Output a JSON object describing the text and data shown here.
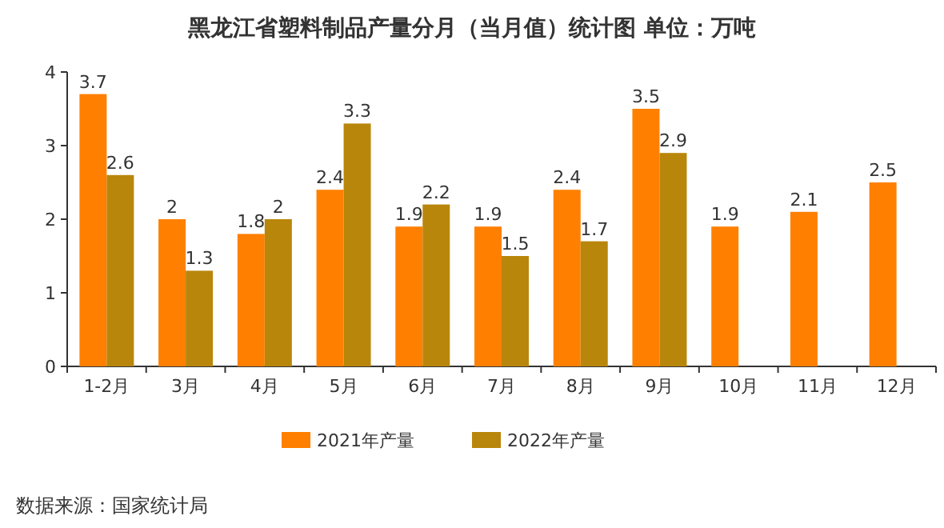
{
  "chart_data": {
    "type": "bar",
    "title": "黑龙江省塑料制品产量分月（当月值）统计图 单位：万吨",
    "categories": [
      "1-2月",
      "3月",
      "4月",
      "5月",
      "6月",
      "7月",
      "8月",
      "9月",
      "10月",
      "11月",
      "12月"
    ],
    "series": [
      {
        "name": "2021年产量",
        "color": "#ff8000",
        "values": [
          3.7,
          2,
          1.8,
          2.4,
          1.9,
          1.9,
          2.4,
          3.5,
          1.9,
          2.1,
          2.5
        ]
      },
      {
        "name": "2022年产量",
        "color": "#b8860b",
        "values": [
          2.6,
          1.3,
          2,
          3.3,
          2.2,
          1.5,
          1.7,
          2.9,
          null,
          null,
          null
        ]
      }
    ],
    "ylim": [
      0,
      4
    ],
    "yticks": [
      0,
      1,
      2,
      3,
      4
    ],
    "data_labels": true,
    "legend": "bottom",
    "annotations": [
      "数据来源：国家统计局"
    ]
  }
}
